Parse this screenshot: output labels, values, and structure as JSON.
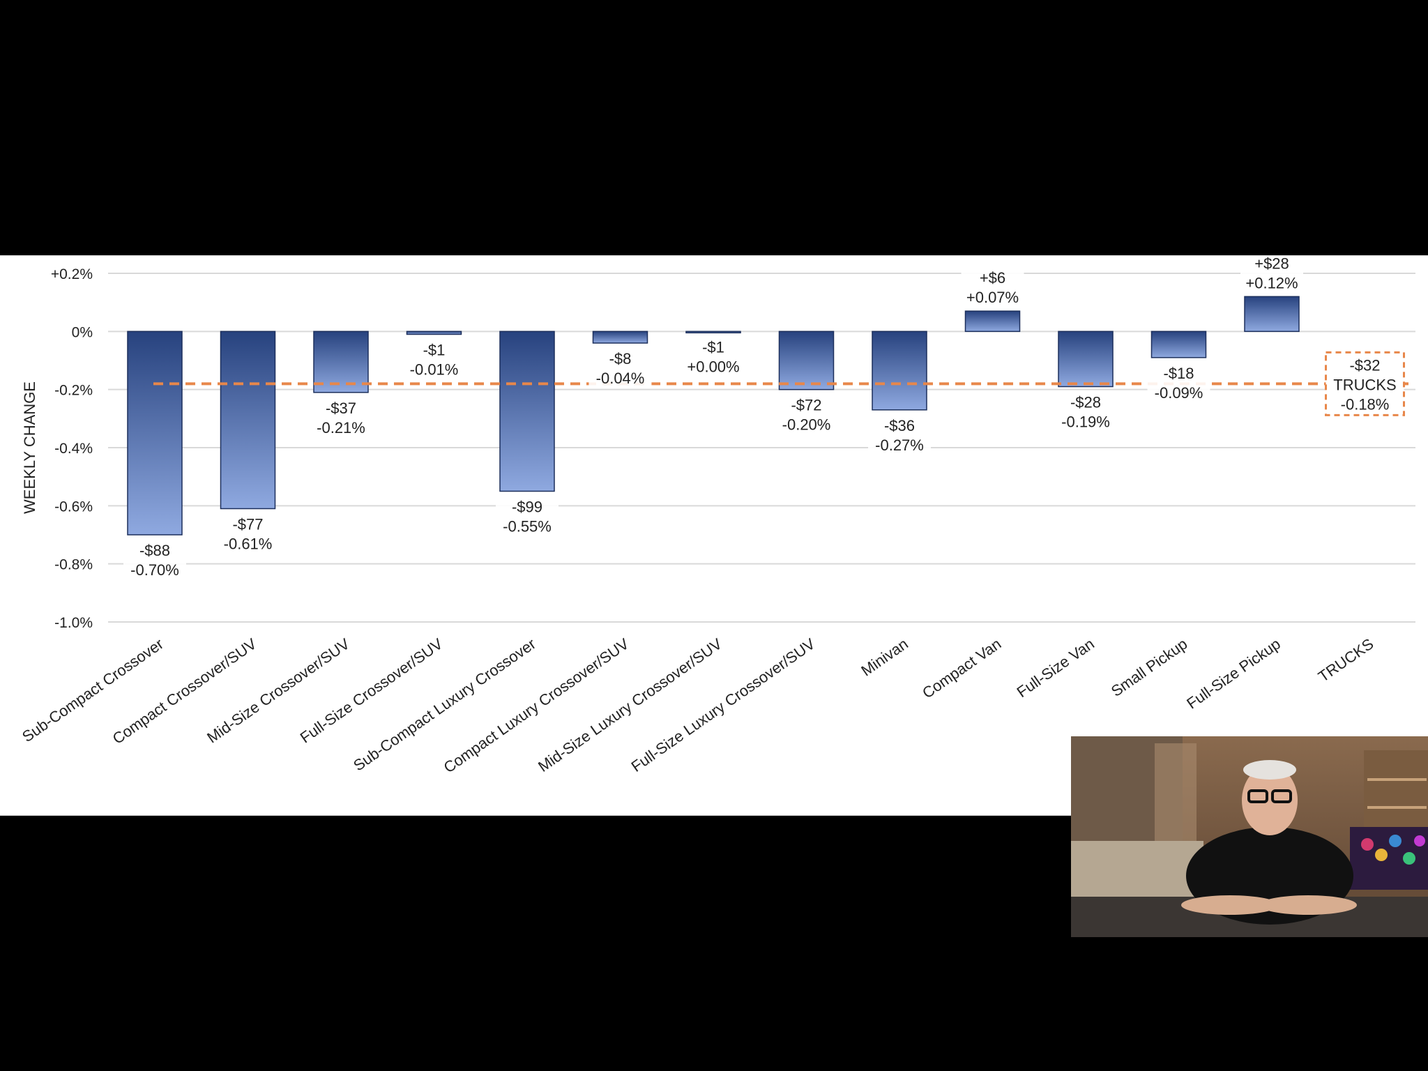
{
  "chart_data": {
    "type": "bar",
    "ylabel": "WEEKLY CHANGE",
    "ylim": [
      -1.0,
      0.2
    ],
    "yticks": [
      0.2,
      0.0,
      -0.2,
      -0.4,
      -0.6,
      -0.8,
      -1.0
    ],
    "ytick_labels": [
      "+0.2%",
      "0%",
      "-0.2%",
      "-0.4%",
      "-0.6%",
      "-0.8%",
      "-1.0%"
    ],
    "grid": true,
    "categories": [
      "Sub-Compact Crossover",
      "Compact Crossover/SUV",
      "Mid-Size Crossover/SUV",
      "Full-Size Crossover/SUV",
      "Sub-Compact Luxury Crossover",
      "Compact Luxury Crossover/SUV",
      "Mid-Size Luxury Crossover/SUV",
      "Full-Size Luxury Crossover/SUV",
      "Minivan",
      "Compact Van",
      "Full-Size Van",
      "Small Pickup",
      "Full-Size Pickup",
      "TRUCKS"
    ],
    "values": [
      -0.7,
      -0.61,
      -0.21,
      -0.01,
      -0.55,
      -0.04,
      0.0,
      -0.2,
      -0.27,
      0.07,
      -0.19,
      -0.09,
      0.12,
      null
    ],
    "dollar_labels": [
      "-$88",
      "-$77",
      "-$37",
      "-$1",
      "-$99",
      "-$8",
      "-$1",
      "-$72",
      "-$36",
      "+$6",
      "-$28",
      "-$18",
      "+$28",
      "-$32"
    ],
    "percent_labels": [
      "-0.70%",
      "-0.61%",
      "-0.21%",
      "-0.01%",
      "-0.55%",
      "-0.04%",
      "+0.00%",
      "-0.20%",
      "-0.27%",
      "+0.07%",
      "-0.19%",
      "-0.09%",
      "+0.12%",
      "-0.18%"
    ],
    "reference_line": {
      "value": -0.18,
      "label_lines": [
        "-$32",
        "TRUCKS",
        "-0.18%"
      ]
    }
  },
  "colors": {
    "bar_top": "#27427e",
    "bar_bottom": "#8fa9e0",
    "reference": "#e8874a",
    "grid": "#d9d9d9",
    "text": "#222222"
  }
}
